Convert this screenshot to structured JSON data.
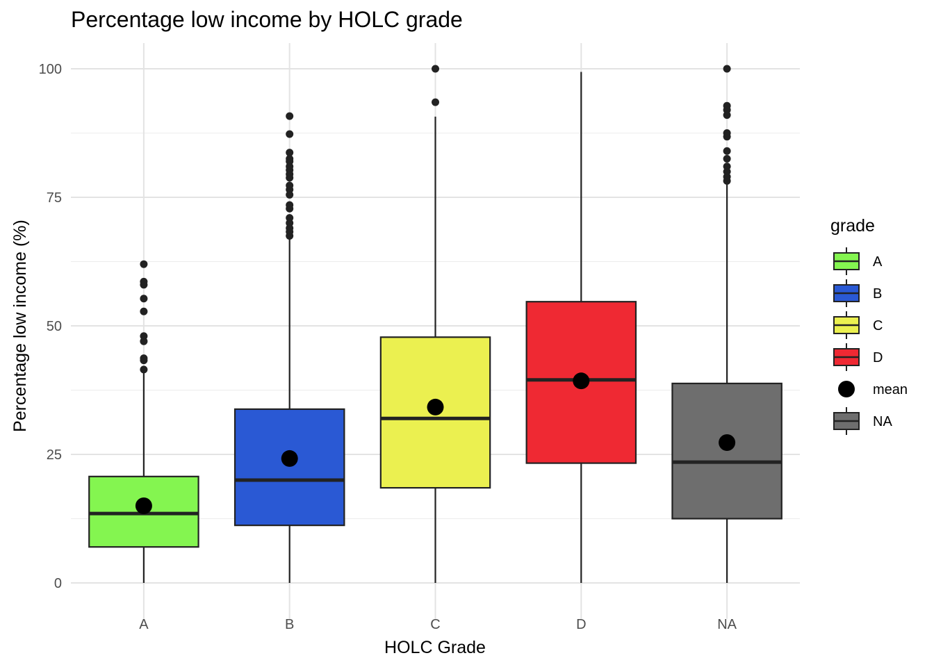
{
  "chart_data": {
    "type": "boxplot",
    "title": "Percentage low income by HOLC grade",
    "xlabel": "HOLC Grade",
    "ylabel": "Percentage low income (%)",
    "ylim": [
      -7,
      105
    ],
    "yticks": [
      0,
      25,
      50,
      75,
      100
    ],
    "grid": true,
    "legend": {
      "title": "grade",
      "position": "right",
      "items": [
        {
          "label": "A",
          "kind": "box",
          "color": "#84f550"
        },
        {
          "label": "B",
          "kind": "box",
          "color": "#2a59d4"
        },
        {
          "label": "C",
          "kind": "box",
          "color": "#ebf050"
        },
        {
          "label": "D",
          "kind": "box",
          "color": "#ef2933"
        },
        {
          "label": "mean",
          "kind": "point",
          "color": "#000000"
        },
        {
          "label": "NA",
          "kind": "box",
          "color": "#6e6e6e"
        }
      ]
    },
    "categories": [
      "A",
      "B",
      "C",
      "D",
      "NA"
    ],
    "boxes": [
      {
        "category": "A",
        "color": "#84f550",
        "min": 0,
        "q1": 7,
        "median": 13.5,
        "q3": 20.7,
        "max": 41.2,
        "mean": 15,
        "outliers": [
          41.5,
          43.3,
          43.7,
          47,
          48,
          52.8,
          55.3,
          58,
          58.6,
          62
        ]
      },
      {
        "category": "B",
        "color": "#2a59d4",
        "min": 0,
        "q1": 11.2,
        "median": 20,
        "q3": 33.8,
        "max": 67,
        "mean": 24.2,
        "outliers": [
          67.5,
          68.3,
          69,
          70,
          71,
          72.8,
          73.5,
          75.5,
          76.5,
          77.3,
          78.8,
          79.5,
          80.3,
          81,
          82,
          82.5,
          83.7,
          87.3,
          90.8
        ]
      },
      {
        "category": "C",
        "color": "#ebf050",
        "min": 0,
        "q1": 18.5,
        "median": 32,
        "q3": 47.8,
        "max": 90.7,
        "mean": 34.2,
        "outliers": [
          93.5,
          100
        ]
      },
      {
        "category": "D",
        "color": "#ef2933",
        "min": 0,
        "q1": 23.3,
        "median": 39.5,
        "q3": 54.7,
        "max": 99.4,
        "mean": 39.3,
        "outliers": []
      },
      {
        "category": "NA",
        "color": "#6e6e6e",
        "min": 0,
        "q1": 12.5,
        "median": 23.5,
        "q3": 38.8,
        "max": 77.5,
        "mean": 27.3,
        "outliers": [
          78.2,
          79,
          80,
          81,
          82.5,
          84,
          86.8,
          87.5,
          91,
          92,
          92.8,
          100
        ]
      }
    ]
  }
}
